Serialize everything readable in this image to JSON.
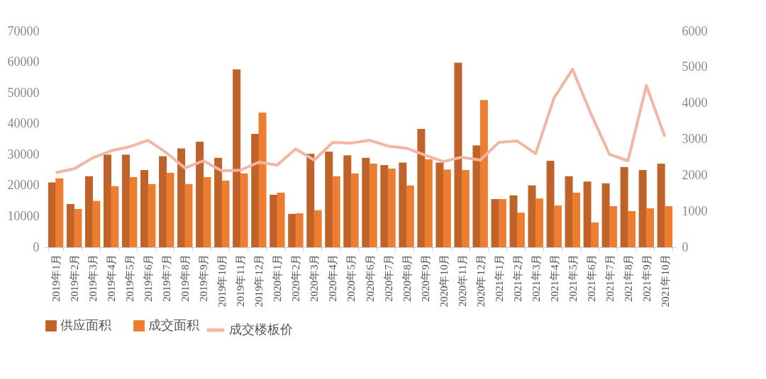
{
  "chart_data": {
    "type": "bar",
    "categories": [
      "2019年1月",
      "2019年2月",
      "2019年3月",
      "2019年4月",
      "2019年5月",
      "2019年6月",
      "2019年7月",
      "2019年8月",
      "2019年9月",
      "2019年10月",
      "2019年11月",
      "2019年12月",
      "2020年1月",
      "2020年2月",
      "2020年3月",
      "2020年4月",
      "2020年5月",
      "2020年6月",
      "2020年7月",
      "2020年8月",
      "2020年9月",
      "2020年10月",
      "2020年11月",
      "2020年12月",
      "2021年1月",
      "2021年2月",
      "2021年3月",
      "2021年4月",
      "2021年5月",
      "2021年6月",
      "2021年7月",
      "2021年8月",
      "2021年9月",
      "2021年10月"
    ],
    "series": [
      {
        "name": "供应面积",
        "color": "#c0632a",
        "values": [
          21000,
          14000,
          23000,
          30000,
          30000,
          25000,
          29500,
          32000,
          34200,
          29000,
          57600,
          36700,
          17000,
          10800,
          30300,
          31000,
          29800,
          29000,
          26600,
          27400,
          38300,
          27400,
          59800,
          33000,
          15600,
          16800,
          20000,
          28000,
          23000,
          21300,
          20700,
          26000,
          25000,
          27100
        ]
      },
      {
        "name": "成交面积",
        "color": "#ed7d31",
        "values": [
          22300,
          12400,
          15000,
          19800,
          22700,
          20500,
          24100,
          20500,
          22700,
          21600,
          23900,
          43600,
          17700,
          11000,
          12000,
          23000,
          23900,
          27100,
          25500,
          20000,
          28500,
          25200,
          25000,
          47700,
          15600,
          11200,
          15800,
          13500,
          17700,
          8000,
          13300,
          11700,
          12600,
          13300
        ]
      },
      {
        "name": "成交楼板价",
        "color": "#f4b6a4",
        "type": "line",
        "axis": "y2",
        "values": [
          2070,
          2180,
          2480,
          2680,
          2790,
          2970,
          2620,
          2200,
          2400,
          2120,
          2140,
          2360,
          2280,
          2730,
          2420,
          2910,
          2890,
          2970,
          2810,
          2750,
          2560,
          2380,
          2500,
          2420,
          2910,
          2950,
          2600,
          4150,
          4940,
          3700,
          2580,
          2400,
          4490,
          3070
        ]
      }
    ],
    "ylim": [
      0,
      70000
    ],
    "yticks": [
      0,
      10000,
      20000,
      30000,
      40000,
      50000,
      60000,
      70000
    ],
    "y2lim": [
      0,
      6000
    ],
    "y2ticks": [
      0,
      1000,
      2000,
      3000,
      4000,
      5000,
      6000
    ],
    "legend": "bottom"
  }
}
